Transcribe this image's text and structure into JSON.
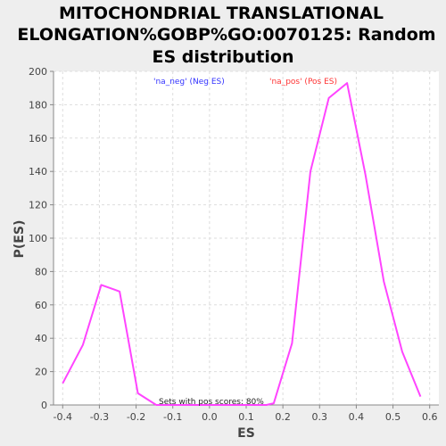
{
  "chart_data": {
    "type": "line",
    "title_lines": [
      "MITOCHONDRIAL TRANSLATIONAL",
      "ELONGATION%GOBP%GO:0070125: Random",
      "ES distribution"
    ],
    "xlabel": "ES",
    "ylabel": "P(ES)",
    "xlim": [
      -0.425,
      0.625
    ],
    "ylim": [
      0,
      200
    ],
    "xticks": [
      "-0.4",
      "-0.3",
      "-0.2",
      "-0.1",
      "0.0",
      "0.1",
      "0.2",
      "0.3",
      "0.4",
      "0.5",
      "0.6"
    ],
    "xtick_values": [
      -0.4,
      -0.3,
      -0.2,
      -0.1,
      0.0,
      0.1,
      0.2,
      0.3,
      0.4,
      0.5,
      0.6
    ],
    "yticks": [
      "0",
      "20",
      "40",
      "60",
      "80",
      "100",
      "120",
      "140",
      "160",
      "180",
      "200"
    ],
    "ytick_values": [
      0,
      20,
      40,
      60,
      80,
      100,
      120,
      140,
      160,
      180,
      200
    ],
    "grid": true,
    "legend": [
      {
        "label": "'na_neg' (Neg ES)",
        "color": "#3333ff"
      },
      {
        "label": "'na_pos' (Pos ES)",
        "color": "#ff3333"
      }
    ],
    "annotation": "Sets with pos scores: 80%",
    "series": [
      {
        "color": "#ff44ff",
        "x": [
          -0.4,
          -0.345,
          -0.295,
          -0.245,
          -0.195,
          -0.145,
          -0.095,
          -0.045,
          0.005,
          0.055,
          0.105,
          0.155,
          0.175,
          0.225,
          0.275,
          0.325,
          0.375,
          0.425,
          0.475,
          0.525,
          0.575
        ],
        "y": [
          13,
          36,
          72,
          68,
          7,
          0,
          0,
          0,
          0,
          0,
          0,
          0,
          1,
          37,
          140,
          184,
          193,
          138,
          74,
          32,
          5
        ]
      }
    ]
  }
}
